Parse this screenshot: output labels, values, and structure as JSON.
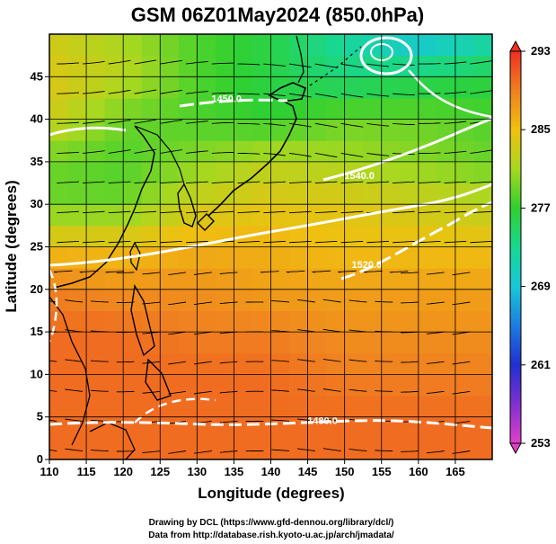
{
  "chart_data": {
    "type": "heatmap",
    "title": "GSM 06Z01May2024 (850.0hPa)",
    "xlabel": "Longitude (degrees)",
    "ylabel": "Latitude  (degrees)",
    "xlim": [
      110,
      170
    ],
    "ylim": [
      0,
      50
    ],
    "xticks": [
      110,
      115,
      120,
      125,
      130,
      135,
      140,
      145,
      150,
      155,
      160,
      165
    ],
    "yticks": [
      0,
      5,
      10,
      15,
      20,
      25,
      30,
      35,
      40,
      45
    ],
    "grid": true,
    "colorbar": {
      "min": 253,
      "max": 293,
      "ticks": [
        253,
        261,
        269,
        277,
        285,
        293
      ],
      "colors": [
        "#e040c8",
        "#8030d0",
        "#2030d0",
        "#1c7ce0",
        "#18c8d8",
        "#18d890",
        "#30d030",
        "#a8d820",
        "#f0c010",
        "#f08020",
        "#f03020"
      ]
    },
    "field_samples": {
      "lon": [
        110,
        120,
        130,
        140,
        150,
        160,
        170
      ],
      "lat": [
        50,
        45,
        40,
        35,
        30,
        25,
        20,
        15,
        10,
        5,
        0
      ],
      "temperature_K": [
        [
          283,
          281,
          278,
          276,
          272,
          268,
          271
        ],
        [
          284,
          282,
          278,
          276,
          274,
          275,
          276
        ],
        [
          283,
          279,
          278,
          277,
          279,
          279,
          278
        ],
        [
          279,
          278,
          280,
          282,
          281,
          280,
          279
        ],
        [
          279,
          279,
          283,
          284,
          284,
          283,
          282
        ],
        [
          285,
          285,
          286,
          286,
          285,
          285,
          285
        ],
        [
          289,
          288,
          288,
          287,
          287,
          287,
          287
        ],
        [
          290,
          290,
          289,
          289,
          288,
          288,
          288
        ],
        [
          290,
          290,
          290,
          290,
          289,
          289,
          289
        ],
        [
          290,
          290,
          290,
          290,
          290,
          290,
          290
        ],
        [
          290,
          290,
          290,
          290,
          290,
          290,
          290
        ]
      ]
    },
    "contours": [
      {
        "label": "1480.0",
        "lon": 147,
        "lat": 4.2
      },
      {
        "label": "1520.0",
        "lon": 153,
        "lat": 22.5
      },
      {
        "label": "1540.0",
        "lon": 152,
        "lat": 33
      },
      {
        "label": "1450.0",
        "lon": 134,
        "lat": 42
      }
    ]
  },
  "credits": {
    "line1": "Drawing by DCL (https://www.gfd-dennou.org/library/dcl/)",
    "line2": "Data from http://database.rish.kyoto-u.ac.jp/arch/jmadata/"
  }
}
